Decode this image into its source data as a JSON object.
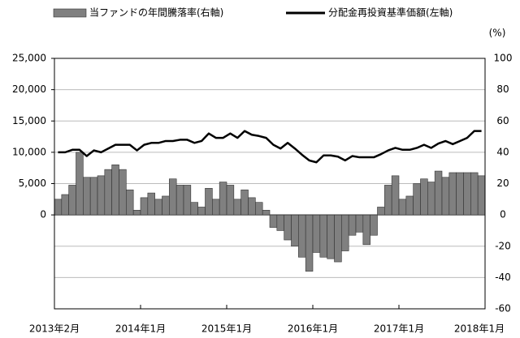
{
  "chart_data": {
    "type": "bar_line",
    "categories": [
      "2013年2月",
      null,
      null,
      null,
      null,
      null,
      null,
      null,
      null,
      null,
      null,
      "2014年1月",
      null,
      null,
      null,
      null,
      null,
      null,
      null,
      null,
      null,
      null,
      null,
      "2015年1月",
      null,
      null,
      null,
      null,
      null,
      null,
      null,
      null,
      null,
      null,
      null,
      "2016年1月",
      null,
      null,
      null,
      null,
      null,
      null,
      null,
      null,
      null,
      null,
      null,
      "2017年1月",
      null,
      null,
      null,
      null,
      null,
      null,
      null,
      null,
      null,
      null,
      null,
      "2018年1月"
    ],
    "series": [
      {
        "name": "当ファンドの年間騰落率(右軸)",
        "color": "#808080",
        "axis": "y2",
        "kind": "bar",
        "values": [
          10,
          13,
          19,
          40,
          24,
          24,
          25,
          29,
          32,
          29,
          16,
          3,
          11,
          14,
          10,
          12,
          23,
          19,
          19,
          8,
          5,
          17,
          10,
          21,
          19,
          10,
          16,
          11,
          8,
          3,
          -8,
          -10,
          -16,
          -20,
          -27,
          -36,
          -24,
          -27,
          -28,
          -30,
          -23,
          -13,
          -11,
          -19,
          -13,
          5,
          19,
          25,
          10,
          12,
          20,
          23,
          21,
          28,
          24,
          27,
          27,
          27,
          27,
          25
        ]
      },
      {
        "name": "分配金再投資基準価額(左軸)",
        "color": "#000000",
        "kind": "line",
        "values": [
          10000,
          10000,
          10400,
          10400,
          9400,
          10300,
          10000,
          10600,
          11200,
          11200,
          11200,
          10300,
          11200,
          11500,
          11500,
          11800,
          11800,
          12000,
          12000,
          11500,
          11800,
          13000,
          12300,
          12300,
          13000,
          12300,
          13400,
          12800,
          12600,
          12300,
          11200,
          10600,
          11500,
          10600,
          9600,
          8700,
          8400,
          9500,
          9500,
          9300,
          8700,
          9400,
          9200,
          9200,
          9200,
          9700,
          10300,
          10700,
          10400,
          10400,
          10700,
          11200,
          10700,
          11400,
          11800,
          11300,
          11800,
          12300,
          13400,
          13400
        ]
      }
    ],
    "ylim": [
      -15000,
      25000
    ],
    "yticks": [
      0,
      {
        "value": 5000,
        "label": "5,000"
      },
      {
        "value": 10000,
        "label": "10,000"
      },
      {
        "value": 15000,
        "label": "15,000"
      },
      {
        "value": 20000,
        "label": "20,000"
      },
      {
        "value": 25000,
        "label": "25,000"
      }
    ],
    "y2lim": [
      -60,
      100
    ],
    "y2ticks": [
      -60,
      -40,
      -20,
      0,
      20,
      40,
      60,
      80,
      100
    ],
    "y2label": "(%)",
    "grid": true,
    "legend": "top"
  }
}
